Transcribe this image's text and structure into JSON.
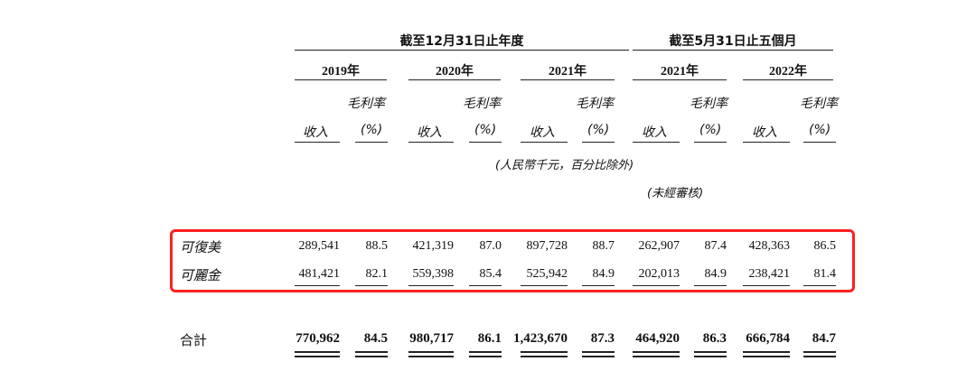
{
  "header": {
    "group_year_end": "截至12月31日止年度",
    "group_five_months": "截至5月31日止五個月",
    "years": [
      "2019年",
      "2020年",
      "2021年",
      "2021年",
      "2022年"
    ],
    "gross_margin_label": "毛利率",
    "revenue_label": "收入",
    "pct_label": "(%)",
    "unit_note": "(人民幣千元，百分比除外)",
    "unaudited_note": "(未經審核)"
  },
  "rows": [
    {
      "label": "可復美",
      "values": [
        "289,541",
        "88.5",
        "421,319",
        "87.0",
        "897,728",
        "88.7",
        "262,907",
        "87.4",
        "428,363",
        "86.5"
      ]
    },
    {
      "label": "可麗金",
      "values": [
        "481,421",
        "82.1",
        "559,398",
        "85.4",
        "525,942",
        "84.9",
        "202,013",
        "84.9",
        "238,421",
        "81.4"
      ]
    }
  ],
  "total": {
    "label": "合計",
    "values": [
      "770,962",
      "84.5",
      "980,717",
      "86.1",
      "1,423,670",
      "87.3",
      "464,920",
      "86.3",
      "666,784",
      "84.7"
    ]
  },
  "colors": {
    "highlight_box": "#ff2020"
  }
}
